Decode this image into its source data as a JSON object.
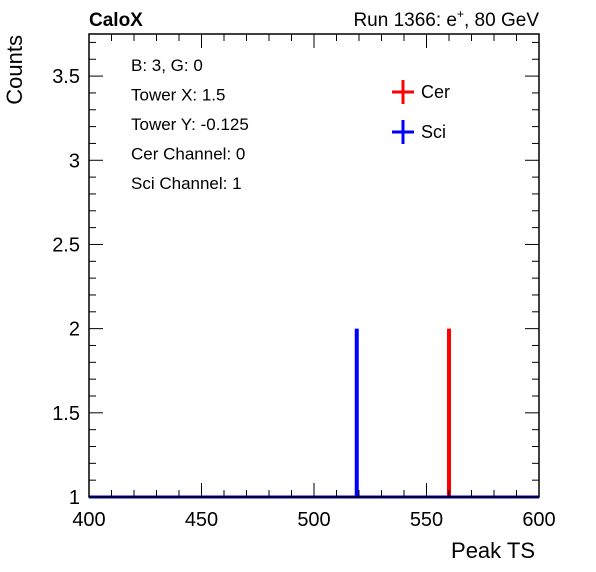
{
  "header": {
    "left_label": "CaloX",
    "right_label_prefix": "Run 1366: e",
    "right_label_sup": "+",
    "right_label_suffix": ", 80 GeV"
  },
  "info_box": {
    "lines": [
      "B: 3, G: 0",
      "Tower X: 1.5",
      "Tower Y: -0.125",
      "Cer Channel: 0",
      "Sci Channel: 1"
    ]
  },
  "chart_data": {
    "type": "histogram",
    "xlabel": "Peak TS",
    "ylabel": "Counts",
    "xlim": [
      400,
      600
    ],
    "ylim": [
      1,
      3.75
    ],
    "x_ticks": [
      400,
      450,
      500,
      550,
      600
    ],
    "x_tick_labels": [
      "400",
      "450",
      "500",
      "550",
      "600"
    ],
    "y_ticks": [
      1,
      1.5,
      2,
      2.5,
      3,
      3.5
    ],
    "y_tick_labels": [
      "1",
      "1.5",
      "2",
      "2.5",
      "3",
      "3.5"
    ],
    "baseline": 1,
    "grid": false,
    "legend_position": "top-right",
    "series": [
      {
        "name": "Cer",
        "color": "#ff0000",
        "peaks": [
          {
            "x": 560,
            "y": 2
          }
        ]
      },
      {
        "name": "Sci",
        "color": "#0000ff",
        "peaks": [
          {
            "x": 519,
            "y": 2
          }
        ]
      }
    ]
  }
}
